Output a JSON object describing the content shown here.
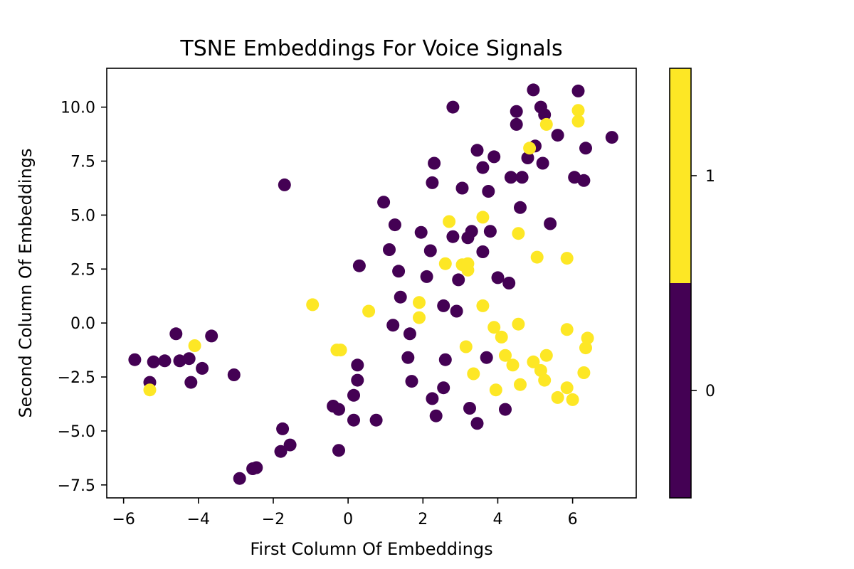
{
  "chart_data": {
    "type": "scatter",
    "title": "TSNE Embeddings For Voice Signals",
    "xlabel": "First Column Of Embeddings",
    "ylabel": "Second Column Of Embeddings",
    "xlim": [
      -6.45,
      7.7
    ],
    "ylim": [
      -8.1,
      11.8
    ],
    "xticks": [
      -6,
      -4,
      -2,
      0,
      2,
      4,
      6
    ],
    "xtick_labels": [
      "−6",
      "−4",
      "−2",
      "0",
      "2",
      "4",
      "6"
    ],
    "yticks": [
      -7.5,
      -5.0,
      -2.5,
      0.0,
      2.5,
      5.0,
      7.5,
      10.0
    ],
    "ytick_labels": [
      "−7.5",
      "−5.0",
      "−2.5",
      "0.0",
      "2.5",
      "5.0",
      "7.5",
      "10.0"
    ],
    "grid": false,
    "colorbar": {
      "range": [
        -0.5,
        1.5
      ],
      "ticks": [
        0,
        1
      ],
      "tick_labels": [
        "0",
        "1"
      ],
      "colors": [
        "#440154",
        "#fde725"
      ]
    },
    "classes": [
      {
        "label": "0",
        "color": "#440154",
        "points": [
          [
            -5.7,
            -1.7
          ],
          [
            -5.3,
            -2.75
          ],
          [
            -5.2,
            -1.8
          ],
          [
            -4.9,
            -1.75
          ],
          [
            -4.6,
            -0.5
          ],
          [
            -4.5,
            -1.75
          ],
          [
            -4.25,
            -1.65
          ],
          [
            -4.2,
            -2.75
          ],
          [
            -3.9,
            -2.1
          ],
          [
            -3.65,
            -0.6
          ],
          [
            -3.05,
            -2.4
          ],
          [
            -1.7,
            6.4
          ],
          [
            -1.75,
            -4.9
          ],
          [
            -1.8,
            -5.95
          ],
          [
            -1.55,
            -5.65
          ],
          [
            -2.55,
            -6.75
          ],
          [
            -2.45,
            -6.7
          ],
          [
            -2.9,
            -7.2
          ],
          [
            -0.4,
            -3.85
          ],
          [
            -0.25,
            -4.0
          ],
          [
            -0.25,
            -5.9
          ],
          [
            0.15,
            -4.5
          ],
          [
            0.15,
            -3.35
          ],
          [
            0.25,
            -2.65
          ],
          [
            0.25,
            -1.95
          ],
          [
            0.3,
            2.65
          ],
          [
            0.75,
            -4.5
          ],
          [
            0.95,
            5.6
          ],
          [
            1.1,
            3.4
          ],
          [
            1.25,
            4.55
          ],
          [
            1.2,
            -0.1
          ],
          [
            1.35,
            2.4
          ],
          [
            1.4,
            1.2
          ],
          [
            1.65,
            -0.5
          ],
          [
            1.6,
            -1.6
          ],
          [
            1.7,
            -2.7
          ],
          [
            1.95,
            4.2
          ],
          [
            2.1,
            2.15
          ],
          [
            2.2,
            3.35
          ],
          [
            2.25,
            6.5
          ],
          [
            2.3,
            7.4
          ],
          [
            2.25,
            -3.5
          ],
          [
            2.35,
            -4.3
          ],
          [
            2.55,
            0.8
          ],
          [
            2.6,
            -1.7
          ],
          [
            2.55,
            -3.0
          ],
          [
            2.8,
            10.0
          ],
          [
            2.8,
            4.0
          ],
          [
            2.9,
            0.55
          ],
          [
            2.95,
            2.0
          ],
          [
            3.05,
            6.25
          ],
          [
            3.2,
            3.95
          ],
          [
            3.3,
            4.25
          ],
          [
            3.25,
            -3.95
          ],
          [
            3.45,
            -4.65
          ],
          [
            3.45,
            8.0
          ],
          [
            3.6,
            7.2
          ],
          [
            3.6,
            3.3
          ],
          [
            3.7,
            -1.6
          ],
          [
            3.75,
            6.1
          ],
          [
            3.8,
            4.25
          ],
          [
            3.9,
            7.7
          ],
          [
            4.0,
            2.1
          ],
          [
            4.2,
            -4.0
          ],
          [
            4.3,
            1.85
          ],
          [
            4.35,
            6.75
          ],
          [
            4.5,
            9.2
          ],
          [
            4.5,
            9.8
          ],
          [
            4.6,
            5.35
          ],
          [
            4.65,
            6.75
          ],
          [
            4.8,
            7.65
          ],
          [
            4.95,
            10.8
          ],
          [
            5.0,
            8.2
          ],
          [
            5.15,
            10.0
          ],
          [
            5.2,
            7.4
          ],
          [
            5.25,
            9.65
          ],
          [
            5.4,
            4.6
          ],
          [
            5.6,
            8.7
          ],
          [
            6.05,
            6.75
          ],
          [
            6.15,
            10.75
          ],
          [
            6.3,
            6.6
          ],
          [
            6.35,
            8.1
          ],
          [
            7.05,
            8.6
          ]
        ]
      },
      {
        "label": "1",
        "color": "#fde725",
        "points": [
          [
            -5.3,
            -3.1
          ],
          [
            -4.1,
            -1.05
          ],
          [
            -0.95,
            0.85
          ],
          [
            -0.3,
            -1.25
          ],
          [
            -0.2,
            -1.25
          ],
          [
            0.55,
            0.55
          ],
          [
            1.9,
            0.95
          ],
          [
            1.9,
            0.25
          ],
          [
            2.6,
            2.75
          ],
          [
            2.7,
            4.7
          ],
          [
            3.05,
            2.7
          ],
          [
            3.15,
            -1.1
          ],
          [
            3.2,
            2.45
          ],
          [
            3.2,
            2.75
          ],
          [
            3.35,
            -2.35
          ],
          [
            3.6,
            4.9
          ],
          [
            3.6,
            0.8
          ],
          [
            3.9,
            -0.2
          ],
          [
            3.95,
            -3.1
          ],
          [
            4.1,
            -0.65
          ],
          [
            4.2,
            -1.5
          ],
          [
            4.4,
            -1.95
          ],
          [
            4.55,
            4.15
          ],
          [
            4.55,
            -0.05
          ],
          [
            4.6,
            -2.85
          ],
          [
            4.85,
            8.1
          ],
          [
            4.95,
            -1.8
          ],
          [
            5.05,
            3.05
          ],
          [
            5.15,
            -2.2
          ],
          [
            5.25,
            -2.65
          ],
          [
            5.3,
            -1.5
          ],
          [
            5.3,
            9.2
          ],
          [
            5.6,
            -3.45
          ],
          [
            5.85,
            -0.3
          ],
          [
            5.85,
            3.0
          ],
          [
            5.85,
            -3.0
          ],
          [
            6.0,
            -3.55
          ],
          [
            6.15,
            9.35
          ],
          [
            6.15,
            9.85
          ],
          [
            6.3,
            -2.3
          ],
          [
            6.35,
            -1.15
          ],
          [
            6.4,
            -0.7
          ]
        ]
      }
    ]
  }
}
